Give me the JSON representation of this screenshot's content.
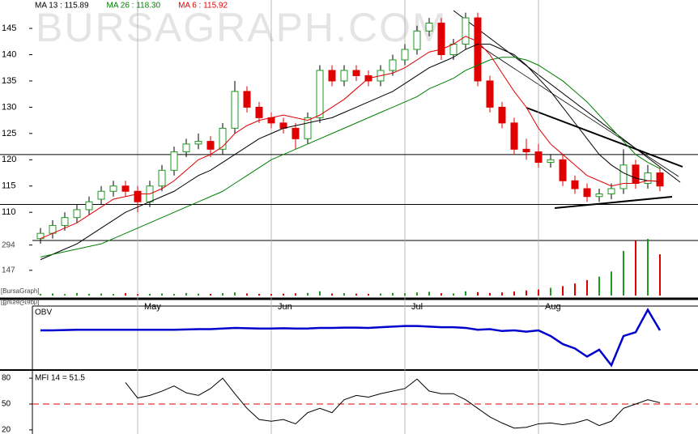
{
  "chart_data": [
    {
      "type": "candlestick",
      "watermark": "BURSAGRAPH.COM",
      "labels": [
        "[BursaGraph]",
        "[BursaGraph]"
      ],
      "categories": [
        null,
        null,
        null,
        null,
        null,
        null,
        null,
        null,
        "May",
        null,
        null,
        null,
        null,
        null,
        null,
        null,
        null,
        null,
        null,
        "Jun",
        null,
        null,
        null,
        null,
        null,
        null,
        null,
        null,
        null,
        null,
        "Jul",
        null,
        null,
        null,
        null,
        null,
        null,
        null,
        null,
        null,
        null,
        "Aug",
        null,
        null,
        null,
        null,
        null,
        null,
        null,
        null,
        null,
        null
      ],
      "open": [
        105,
        106,
        107.5,
        109,
        110.5,
        112.5,
        114,
        115,
        114,
        112,
        115,
        118,
        121.5,
        123,
        123.5,
        122,
        126,
        133,
        130,
        128,
        127,
        126,
        124,
        128,
        137,
        135,
        137,
        136,
        135,
        137,
        139,
        141,
        144.5,
        146,
        140,
        142,
        147,
        135,
        130,
        127,
        122,
        121.5,
        119.5,
        120,
        116,
        114.5,
        113,
        113.5,
        114.5,
        119,
        115.5,
        117.5
      ],
      "high": [
        107,
        108.5,
        110,
        111.5,
        113,
        115,
        116,
        116,
        115,
        116,
        119,
        122.5,
        124,
        125,
        124.5,
        127,
        135,
        134,
        131,
        129,
        128,
        127,
        129,
        138,
        138,
        138,
        138,
        137,
        138,
        140,
        142,
        145.5,
        147,
        147,
        143,
        148,
        148,
        136,
        131,
        128,
        124,
        123,
        121,
        121,
        117,
        115.5,
        114.5,
        115.5,
        122,
        120,
        119,
        118.5
      ],
      "low": [
        104,
        105,
        106.5,
        108,
        109.5,
        111.5,
        113,
        113,
        110,
        111,
        114,
        117,
        120.5,
        122,
        120.5,
        121,
        125,
        129,
        127,
        126,
        125,
        122,
        123,
        127,
        134,
        134,
        135,
        134,
        134,
        136,
        138,
        140,
        143.5,
        139,
        139,
        141,
        134,
        129,
        126,
        121,
        120,
        118.5,
        118.5,
        115,
        113.5,
        112,
        112,
        112.5,
        113.5,
        114.5,
        114.5,
        114
      ],
      "close": [
        106,
        107.5,
        109,
        110.5,
        112,
        114,
        115,
        114,
        112,
        115,
        118,
        121.5,
        123,
        123.5,
        122,
        126,
        133,
        130,
        128,
        127,
        126,
        124,
        128,
        137,
        135,
        137,
        136,
        135,
        137,
        139,
        141,
        144.5,
        146,
        140,
        142,
        147,
        135,
        130,
        127,
        122,
        121.5,
        119.5,
        120,
        116,
        114.5,
        113,
        113.5,
        114.5,
        119,
        115.5,
        117.5,
        115
      ],
      "up_color": "#1f9a1f",
      "down_color": "#e00000",
      "series": [
        {
          "name": "MA 13 : 115.89",
          "color": "#000000",
          "values": [
            101,
            102,
            103,
            104,
            105.5,
            107,
            108.5,
            110,
            111,
            112,
            113,
            114,
            115.5,
            117,
            118,
            119.5,
            121,
            122.5,
            124,
            125,
            126,
            126.5,
            127,
            127.5,
            128,
            129,
            130,
            131,
            132,
            133,
            134.5,
            136,
            137.5,
            138.5,
            139.5,
            141,
            142,
            142,
            141,
            140,
            138,
            135.5,
            133,
            130,
            127,
            124,
            121,
            119,
            117.5,
            116.5,
            116,
            115.89
          ]
        },
        {
          "name": "MA 26 : 118.30",
          "color": "#008000",
          "values": [
            101.5,
            102,
            102.5,
            103,
            103.5,
            104,
            105,
            106,
            107,
            108,
            109,
            110,
            111,
            112,
            113,
            114,
            115.5,
            117,
            118.5,
            120,
            121,
            122,
            123,
            124,
            125,
            126,
            127,
            128,
            129,
            130,
            131,
            132,
            133.5,
            134.5,
            135.5,
            137,
            138,
            139,
            139.5,
            139.5,
            139,
            138,
            136.5,
            135,
            133,
            131,
            128.5,
            126,
            123.5,
            121,
            119.5,
            118.3
          ]
        },
        {
          "name": "MA 6 : 115.92",
          "color": "#e00000",
          "values": [
            105,
            106,
            107,
            108,
            109.5,
            111,
            112.5,
            113,
            113.5,
            113.5,
            114.5,
            116,
            118,
            120,
            121,
            122.5,
            125,
            126.5,
            127.5,
            128,
            128.5,
            128,
            127.5,
            128.5,
            130,
            131.5,
            133.5,
            135.5,
            136,
            136.5,
            137.5,
            139,
            140.5,
            141,
            142,
            143.5,
            142.5,
            140,
            136.5,
            133,
            130,
            126,
            123,
            121,
            119,
            117,
            116,
            115,
            115.5,
            115.5,
            116,
            115.92
          ]
        }
      ],
      "ylim": [
        93.7,
        150.4
      ],
      "yticks": [
        110,
        115,
        120,
        125,
        130,
        135,
        140,
        145
      ],
      "hlines": [
        121,
        111.5
      ],
      "volume": {
        "values": [
          10,
          12,
          8,
          15,
          10,
          12,
          9,
          14,
          8,
          10,
          12,
          9,
          15,
          11,
          10,
          14,
          18,
          12,
          10,
          9,
          11,
          13,
          15,
          25,
          12,
          14,
          11,
          10,
          12,
          15,
          13,
          18,
          22,
          14,
          12,
          25,
          20,
          15,
          18,
          24,
          30,
          35,
          45,
          55,
          70,
          90,
          110,
          140,
          260,
          320,
          330,
          240
        ],
        "ylim": [
          0,
          330
        ],
        "yticks": [
          147,
          294
        ]
      }
    },
    {
      "type": "line",
      "title": "OBV",
      "color": "#0000cc",
      "ylim": [
        0,
        100
      ],
      "values": [
        61,
        61,
        61.5,
        62,
        62,
        62,
        62,
        62,
        62,
        62,
        62,
        62,
        62.5,
        63,
        63,
        64,
        65,
        64.5,
        64,
        64,
        64.5,
        64,
        64,
        65,
        65,
        65.5,
        65.5,
        65,
        66,
        67,
        68,
        68,
        67,
        66,
        66,
        65,
        62,
        63,
        60,
        61,
        59,
        61,
        52,
        39,
        32,
        19,
        30,
        5,
        52,
        58,
        94,
        61
      ]
    },
    {
      "type": "line",
      "title": "MFI 14 = 51.5",
      "color": "#000000",
      "ylim": [
        15.2,
        87.6
      ],
      "yticks": [
        20,
        50,
        80
      ],
      "reference": 50,
      "reference_color": "#e00000",
      "values": [
        null,
        null,
        null,
        null,
        null,
        null,
        null,
        75,
        57,
        60,
        65,
        71,
        63,
        60,
        68,
        80,
        62,
        45,
        32,
        30,
        32,
        27,
        40,
        45,
        40,
        55,
        60,
        58,
        62,
        65,
        68,
        79,
        65,
        62,
        62,
        55,
        45,
        35,
        28,
        22,
        23,
        27,
        28,
        26,
        28,
        32,
        25,
        30,
        45,
        50,
        55,
        51.5
      ]
    }
  ]
}
